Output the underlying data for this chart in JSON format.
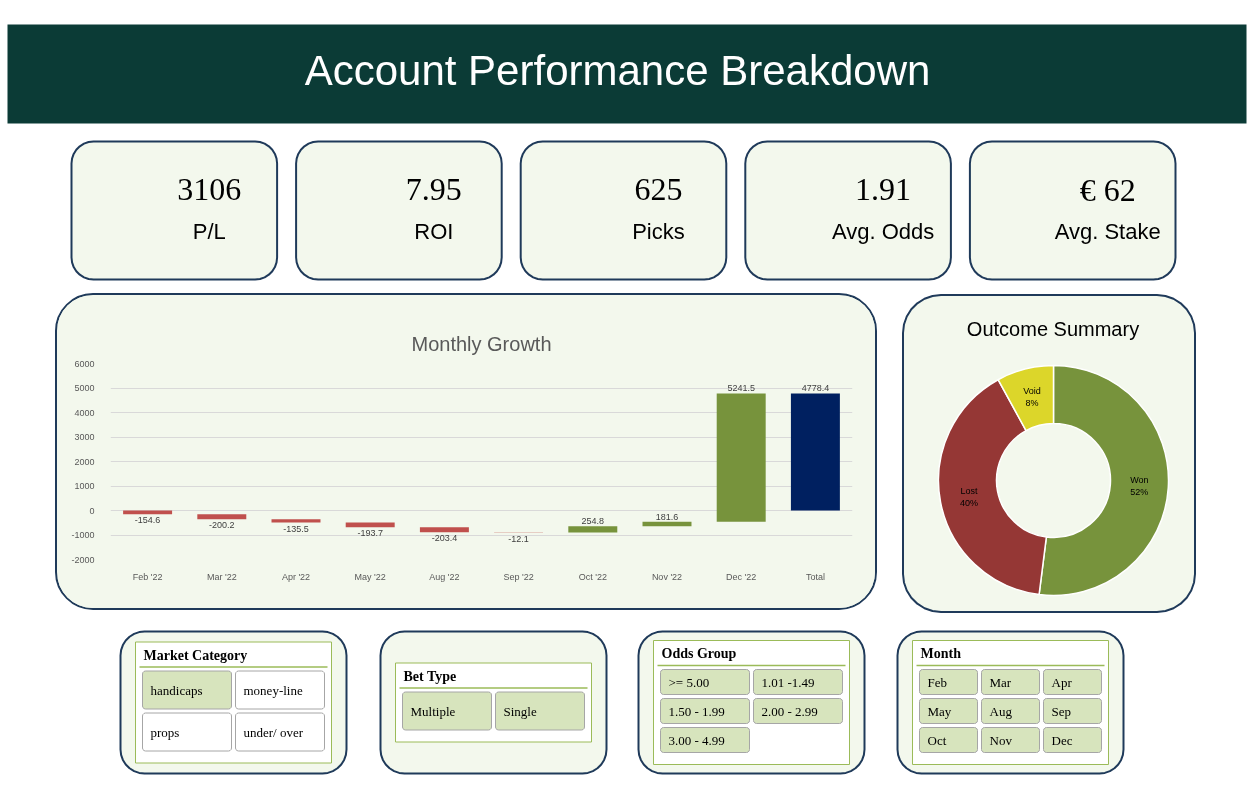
{
  "chart_data": [
    {
      "type": "other",
      "title": "Account Performance Breakdown",
      "categories": [
        "P/L",
        "ROI",
        "Picks",
        "Avg. Odds",
        "Avg. Stake"
      ],
      "value_labels": [
        "3106",
        "7.95",
        "625",
        "1.91",
        "€ 62"
      ]
    },
    {
      "type": "bar",
      "title": "Monthly Growth",
      "categories": [
        "Feb '22",
        "Mar '22",
        "Apr '22",
        "May '22",
        "Aug '22",
        "Sep '22",
        "Oct '22",
        "Nov '22",
        "Dec '22",
        "Total"
      ],
      "values": [
        -154.6,
        -200.2,
        -135.5,
        -193.7,
        -203.4,
        -12.1,
        254.8,
        181.6,
        5241.5,
        4778.4
      ],
      "base": [
        0,
        -154.6,
        -354.8,
        -490.3,
        -684.0,
        -887.4,
        -899.5,
        -644.7,
        -463.1,
        0
      ],
      "colors": [
        "#c0504d",
        "#c0504d",
        "#c0504d",
        "#c0504d",
        "#c0504d",
        "#c0504d",
        "#77933c",
        "#77933c",
        "#77933c",
        "#002060"
      ],
      "ylim": [
        -2000,
        6000
      ],
      "yticks": [
        -2000,
        -1000,
        0,
        1000,
        2000,
        3000,
        4000,
        5000,
        6000
      ],
      "grid": "y",
      "data_labels": true
    },
    {
      "type": "donut",
      "title": "Outcome Summary",
      "categories": [
        "Won",
        "Lost",
        "Void"
      ],
      "values": [
        52,
        40,
        8
      ],
      "colors": [
        "#77933c",
        "#953735",
        "#dcd62a"
      ],
      "value_labels": [
        "52%",
        "40%",
        "8%"
      ]
    },
    {
      "type": "other",
      "title": "Market Category",
      "categories": [
        "handicaps",
        "money-line",
        "props",
        "under/ over"
      ],
      "colors": [
        "#d7e4bd",
        "#ffffff",
        "#ffffff",
        "#ffffff"
      ]
    },
    {
      "type": "other",
      "title": "Bet Type",
      "categories": [
        "Multiple",
        "Single"
      ],
      "colors": [
        "#d7e4bd",
        "#d7e4bd"
      ]
    },
    {
      "type": "other",
      "title": "Odds Group",
      "categories": [
        ">= 5.00",
        "1.01 -1.49",
        "1.50 - 1.99",
        "2.00 - 2.99",
        "3.00 - 4.99"
      ],
      "colors": [
        "#d7e4bd",
        "#d7e4bd",
        "#d7e4bd",
        "#d7e4bd",
        "#d7e4bd"
      ]
    },
    {
      "type": "other",
      "title": "Month",
      "categories": [
        "Feb",
        "Mar",
        "Apr",
        "May",
        "Aug",
        "Sep",
        "Oct",
        "Nov",
        "Dec"
      ],
      "colors": [
        "#d7e4bd",
        "#d7e4bd",
        "#d7e4bd",
        "#d7e4bd",
        "#d7e4bd",
        "#d7e4bd",
        "#d7e4bd",
        "#d7e4bd",
        "#d7e4bd"
      ]
    }
  ]
}
